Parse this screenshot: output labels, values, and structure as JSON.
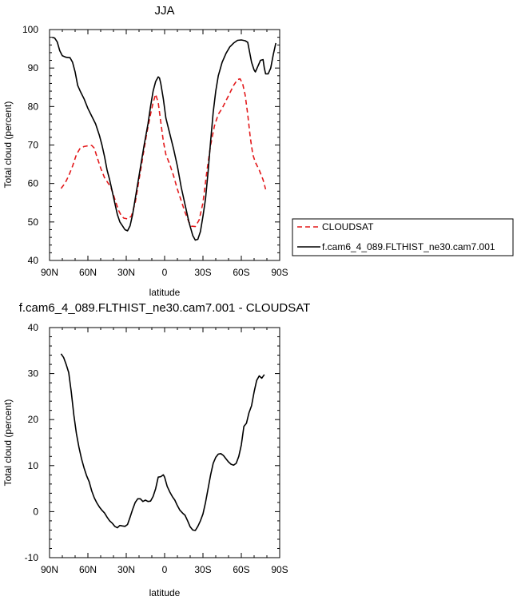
{
  "chart_data": [
    {
      "type": "line",
      "title": "JJA",
      "xlabel": "latitude",
      "ylabel": "Total cloud (percent)",
      "xlim": [
        -90,
        90
      ],
      "ylim": [
        40,
        100
      ],
      "x_ticks": [
        -90,
        -60,
        -30,
        0,
        30,
        60,
        90
      ],
      "x_tick_labels": [
        "90N",
        "60N",
        "30N",
        "0",
        "30S",
        "60S",
        "90S"
      ],
      "y_ticks": [
        40,
        50,
        60,
        70,
        80,
        90,
        100
      ],
      "y_tick_labels": [
        "40",
        "50",
        "60",
        "70",
        "80",
        "90",
        "100"
      ],
      "legend_position": "right-outside",
      "series": [
        {
          "name": "CLOUDSAT",
          "color": "#e31a1c",
          "dash": "dashed",
          "points": [
            [
              -81,
              58.7
            ],
            [
              -78,
              60
            ],
            [
              -75,
              62
            ],
            [
              -72,
              64.5
            ],
            [
              -69,
              67.5
            ],
            [
              -66,
              69.2
            ],
            [
              -63,
              69.6
            ],
            [
              -60,
              69.8
            ],
            [
              -57,
              69.9
            ],
            [
              -55,
              69.2
            ],
            [
              -53,
              67
            ],
            [
              -50,
              64
            ],
            [
              -47,
              61.5
            ],
            [
              -44,
              60
            ],
            [
              -42,
              59
            ],
            [
              -40,
              57
            ],
            [
              -38,
              55
            ],
            [
              -36,
              53
            ],
            [
              -34,
              51.7
            ],
            [
              -32,
              51
            ],
            [
              -29,
              50.8
            ],
            [
              -26,
              51.5
            ],
            [
              -23,
              55
            ],
            [
              -20,
              61
            ],
            [
              -17,
              67
            ],
            [
              -14,
              73
            ],
            [
              -11,
              78
            ],
            [
              -9,
              81
            ],
            [
              -7,
              83.2
            ],
            [
              -5,
              81
            ],
            [
              -3,
              76
            ],
            [
              -1,
              71
            ],
            [
              1,
              67.5
            ],
            [
              4,
              65
            ],
            [
              7,
              62
            ],
            [
              10,
              58.5
            ],
            [
              13,
              55.5
            ],
            [
              16,
              52.5
            ],
            [
              19,
              50
            ],
            [
              21,
              48.9
            ],
            [
              24,
              48.8
            ],
            [
              27,
              50.5
            ],
            [
              30,
              55
            ],
            [
              33,
              63
            ],
            [
              36,
              70
            ],
            [
              39,
              75
            ],
            [
              42,
              78
            ],
            [
              45,
              79.5
            ],
            [
              48,
              81.5
            ],
            [
              51,
              83.5
            ],
            [
              54,
              85.5
            ],
            [
              57,
              87
            ],
            [
              59,
              87.2
            ],
            [
              61,
              86
            ],
            [
              63,
              83
            ],
            [
              65,
              78
            ],
            [
              67,
              72
            ],
            [
              69,
              67.5
            ],
            [
              71,
              65.5
            ],
            [
              74,
              63.5
            ],
            [
              77,
              61
            ],
            [
              79,
              58.5
            ]
          ]
        },
        {
          "name": "f.cam6_4_089.FLTHIST_ne30.cam7.001",
          "color": "#000000",
          "dash": "solid",
          "points": [
            [
              -88,
              98
            ],
            [
              -86,
              97.8
            ],
            [
              -84,
              96.8
            ],
            [
              -82,
              94.5
            ],
            [
              -80,
              93.2
            ],
            [
              -77,
              92.8
            ],
            [
              -74,
              92.7
            ],
            [
              -72,
              91.5
            ],
            [
              -70,
              89
            ],
            [
              -68,
              85.5
            ],
            [
              -66,
              84
            ],
            [
              -63,
              82
            ],
            [
              -60,
              79.5
            ],
            [
              -57,
              77.5
            ],
            [
              -54,
              75.5
            ],
            [
              -51,
              72.5
            ],
            [
              -49,
              70
            ],
            [
              -47,
              67
            ],
            [
              -45,
              63.5
            ],
            [
              -43,
              61
            ],
            [
              -41,
              58
            ],
            [
              -39,
              55
            ],
            [
              -37,
              52
            ],
            [
              -35,
              50
            ],
            [
              -33,
              49
            ],
            [
              -31,
              48
            ],
            [
              -29,
              47.7
            ],
            [
              -27,
              49
            ],
            [
              -25,
              52
            ],
            [
              -22,
              58
            ],
            [
              -19,
              64
            ],
            [
              -16,
              70
            ],
            [
              -13,
              75.5
            ],
            [
              -11,
              80
            ],
            [
              -9,
              84
            ],
            [
              -7,
              86.5
            ],
            [
              -5,
              87.7
            ],
            [
              -4,
              87.4
            ],
            [
              -3,
              86
            ],
            [
              -1,
              82
            ],
            [
              1,
              77
            ],
            [
              4,
              73
            ],
            [
              7,
              69
            ],
            [
              10,
              64.5
            ],
            [
              13,
              59
            ],
            [
              16,
              54.5
            ],
            [
              19,
              50
            ],
            [
              22,
              46.5
            ],
            [
              24,
              45.3
            ],
            [
              26,
              45.5
            ],
            [
              28,
              47.5
            ],
            [
              30,
              51.5
            ],
            [
              32,
              56
            ],
            [
              34,
              63
            ],
            [
              36,
              71
            ],
            [
              38,
              78.5
            ],
            [
              40,
              84
            ],
            [
              42,
              88
            ],
            [
              45,
              91.5
            ],
            [
              48,
              93.8
            ],
            [
              51,
              95.5
            ],
            [
              54,
              96.5
            ],
            [
              57,
              97.2
            ],
            [
              60,
              97.3
            ],
            [
              63,
              97.1
            ],
            [
              65,
              96.7
            ],
            [
              66,
              95
            ],
            [
              68,
              91.5
            ],
            [
              70,
              89.5
            ],
            [
              71,
              89
            ],
            [
              73,
              90.5
            ],
            [
              75,
              92
            ],
            [
              77,
              92.2
            ],
            [
              78,
              90
            ],
            [
              79,
              88.5
            ],
            [
              81,
              88.5
            ],
            [
              83,
              90
            ],
            [
              85,
              93.5
            ],
            [
              87,
              96.5
            ]
          ]
        }
      ]
    },
    {
      "type": "line",
      "title": "f.cam6_4_089.FLTHIST_ne30.cam7.001 - CLOUDSAT",
      "xlabel": "latitude",
      "ylabel": "Total cloud (percent)",
      "xlim": [
        -90,
        90
      ],
      "ylim": [
        -10,
        40
      ],
      "x_ticks": [
        -90,
        -60,
        -30,
        0,
        30,
        60,
        90
      ],
      "x_tick_labels": [
        "90N",
        "60N",
        "30N",
        "0",
        "30S",
        "60S",
        "90S"
      ],
      "y_ticks": [
        -10,
        0,
        10,
        20,
        30,
        40
      ],
      "y_tick_labels": [
        "-10",
        "0",
        "10",
        "20",
        "30",
        "40"
      ],
      "series": [
        {
          "color": "#000000",
          "dash": "solid",
          "points": [
            [
              -81,
              34.3
            ],
            [
              -79,
              33.5
            ],
            [
              -77,
              32
            ],
            [
              -75,
              30.2
            ],
            [
              -73,
              26
            ],
            [
              -71,
              21
            ],
            [
              -69,
              17
            ],
            [
              -67,
              14
            ],
            [
              -65,
              11.5
            ],
            [
              -63,
              9.5
            ],
            [
              -61,
              7.8
            ],
            [
              -59,
              6.5
            ],
            [
              -57,
              4.5
            ],
            [
              -55,
              3
            ],
            [
              -53,
              1.9
            ],
            [
              -51,
              1
            ],
            [
              -49,
              0.3
            ],
            [
              -47,
              -0.3
            ],
            [
              -45,
              -1.2
            ],
            [
              -43,
              -2
            ],
            [
              -41,
              -2.5
            ],
            [
              -39,
              -3.2
            ],
            [
              -37,
              -3.5
            ],
            [
              -35,
              -3
            ],
            [
              -33,
              -3.1
            ],
            [
              -31,
              -3.2
            ],
            [
              -29,
              -2.8
            ],
            [
              -27,
              -1.2
            ],
            [
              -25,
              0.5
            ],
            [
              -23,
              2
            ],
            [
              -21,
              2.8
            ],
            [
              -19,
              2.8
            ],
            [
              -17,
              2.2
            ],
            [
              -15,
              2.5
            ],
            [
              -13,
              2.2
            ],
            [
              -11,
              2.3
            ],
            [
              -9,
              3.3
            ],
            [
              -7,
              5
            ],
            [
              -5,
              7.5
            ],
            [
              -3,
              7.6
            ],
            [
              -1,
              8
            ],
            [
              0,
              7.5
            ],
            [
              2,
              5.5
            ],
            [
              4,
              4.3
            ],
            [
              6,
              3.3
            ],
            [
              8,
              2.5
            ],
            [
              10,
              1.3
            ],
            [
              12,
              0.3
            ],
            [
              14,
              -0.3
            ],
            [
              16,
              -0.8
            ],
            [
              18,
              -2
            ],
            [
              20,
              -3.3
            ],
            [
              22,
              -4
            ],
            [
              24,
              -4.1
            ],
            [
              26,
              -3.2
            ],
            [
              28,
              -2
            ],
            [
              30,
              -0.5
            ],
            [
              32,
              2
            ],
            [
              34,
              5
            ],
            [
              36,
              8
            ],
            [
              38,
              10.5
            ],
            [
              40,
              11.8
            ],
            [
              42,
              12.5
            ],
            [
              44,
              12.6
            ],
            [
              46,
              12.2
            ],
            [
              48,
              11.5
            ],
            [
              50,
              10.8
            ],
            [
              52,
              10.3
            ],
            [
              54,
              10.1
            ],
            [
              56,
              10.5
            ],
            [
              58,
              12
            ],
            [
              60,
              14.5
            ],
            [
              62,
              18.5
            ],
            [
              64,
              19.2
            ],
            [
              66,
              21.5
            ],
            [
              68,
              23
            ],
            [
              70,
              26
            ],
            [
              72,
              28.5
            ],
            [
              74,
              29.5
            ],
            [
              76,
              29
            ],
            [
              78,
              29.8
            ]
          ]
        }
      ]
    }
  ]
}
